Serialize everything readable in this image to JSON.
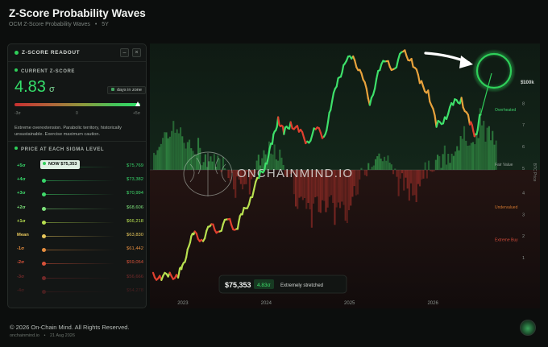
{
  "header": {
    "title": "Z-Score Probability Waves",
    "subtitle": "OCM Z-Score Probability Waves",
    "separator": "•",
    "timeframe": "5Y"
  },
  "panel": {
    "title": "Z-SCORE READOUT",
    "minimize_glyph": "–",
    "close_glyph": "×",
    "current_label": "CURRENT Z-SCORE",
    "current_value": "4.83",
    "sigma_symbol": "σ",
    "days_label": "days in zone",
    "scale_min": "-3σ",
    "scale_mid": "0",
    "scale_max": "+5σ",
    "description": "Extreme overextension. Parabolic territory, historically unsustainable. Exercise maximum caution.",
    "levels_label": "PRICE AT EACH SIGMA LEVEL",
    "now_label": "NOW",
    "now_price": "$75,353",
    "levels": [
      {
        "name": "+5σ",
        "price": "$75,769",
        "color": "#37d66a"
      },
      {
        "name": "+4σ",
        "price": "$73,382",
        "color": "#37d66a"
      },
      {
        "name": "+3σ",
        "price": "$70,994",
        "color": "#40db6c"
      },
      {
        "name": "+2σ",
        "price": "$68,606",
        "color": "#7de07a"
      },
      {
        "name": "+1σ",
        "price": "$66,218",
        "color": "#b8e050"
      },
      {
        "name": "Mean",
        "price": "$63,830",
        "color": "#e8c85c"
      },
      {
        "name": "-1σ",
        "price": "$61,442",
        "color": "#e58d3f"
      },
      {
        "name": "-2σ",
        "price": "$59,054",
        "color": "#d8523a"
      },
      {
        "name": "-3σ",
        "price": "$56,666",
        "color": "#c03a3a"
      },
      {
        "name": "-4σ",
        "price": "$54,278",
        "color": "#a32e33"
      }
    ]
  },
  "chart_data": {
    "type": "line",
    "x_ticks": [
      "2023",
      "2024",
      "2025",
      "2026"
    ],
    "y_ticks": [
      "1",
      "2",
      "3",
      "4",
      "5",
      "6",
      "7",
      "8",
      "9"
    ],
    "y_top_label": "$100k",
    "ylabel": "BTC Price",
    "ylim": [
      0,
      10
    ],
    "xlim": [
      2022.65,
      2026.75
    ],
    "zones": [
      {
        "label": "Overheated",
        "y": 7.55,
        "color": "#3ecf6a"
      },
      {
        "label": "Fair Value",
        "y": 5.3,
        "color": "#9aa39d"
      },
      {
        "label": "Undervalued",
        "y": 3.55,
        "color": "#d0762f"
      },
      {
        "label": "Extreme Buy",
        "y": 2.2,
        "color": "#d04a3a"
      }
    ],
    "watermark": "ONCHAINMIND.IO",
    "price_series": [
      [
        2022.65,
        0.9
      ],
      [
        2022.75,
        0.6
      ],
      [
        2022.85,
        0.9
      ],
      [
        2022.95,
        0.7
      ],
      [
        2023.0,
        1.2
      ],
      [
        2023.08,
        2.0
      ],
      [
        2023.15,
        2.6
      ],
      [
        2023.25,
        2.2
      ],
      [
        2023.35,
        2.9
      ],
      [
        2023.45,
        2.6
      ],
      [
        2023.55,
        3.1
      ],
      [
        2023.65,
        2.7
      ],
      [
        2023.72,
        3.3
      ],
      [
        2023.82,
        4.0
      ],
      [
        2023.92,
        4.8
      ],
      [
        2024.0,
        5.4
      ],
      [
        2024.08,
        6.2
      ],
      [
        2024.15,
        7.3
      ],
      [
        2024.22,
        6.6
      ],
      [
        2024.3,
        7.1
      ],
      [
        2024.4,
        6.7
      ],
      [
        2024.5,
        6.3
      ],
      [
        2024.6,
        6.8
      ],
      [
        2024.7,
        6.5
      ],
      [
        2024.78,
        7.6
      ],
      [
        2024.87,
        8.9
      ],
      [
        2024.95,
        9.5
      ],
      [
        2025.05,
        9.8
      ],
      [
        2025.15,
        9.1
      ],
      [
        2025.25,
        7.8
      ],
      [
        2025.35,
        9.2
      ],
      [
        2025.45,
        9.6
      ],
      [
        2025.55,
        9.3
      ],
      [
        2025.65,
        10.0
      ],
      [
        2025.75,
        9.7
      ],
      [
        2025.85,
        8.7
      ],
      [
        2025.95,
        8.4
      ],
      [
        2026.05,
        6.9
      ],
      [
        2026.15,
        7.3
      ],
      [
        2026.25,
        7.8
      ],
      [
        2026.35,
        8.1
      ],
      [
        2026.45,
        7.0
      ],
      [
        2026.52,
        6.6
      ],
      [
        2026.58,
        7.4
      ]
    ]
  },
  "tooltip": {
    "price": "$75,353",
    "zscore": "4.83σ",
    "status": "Extremely stretched"
  },
  "footer": {
    "copyright": "© 2026 On-Chain Mind. All Rights Reserved.",
    "site": "onchainmind.io",
    "separator": "•",
    "date": "21 Aug 2026"
  },
  "colors": {
    "accent": "#2fd05a",
    "positive_band": "#3aa64f",
    "negative_band": "#b0332c",
    "price_high": "#3ee06a",
    "price_low": "#e0402f"
  }
}
